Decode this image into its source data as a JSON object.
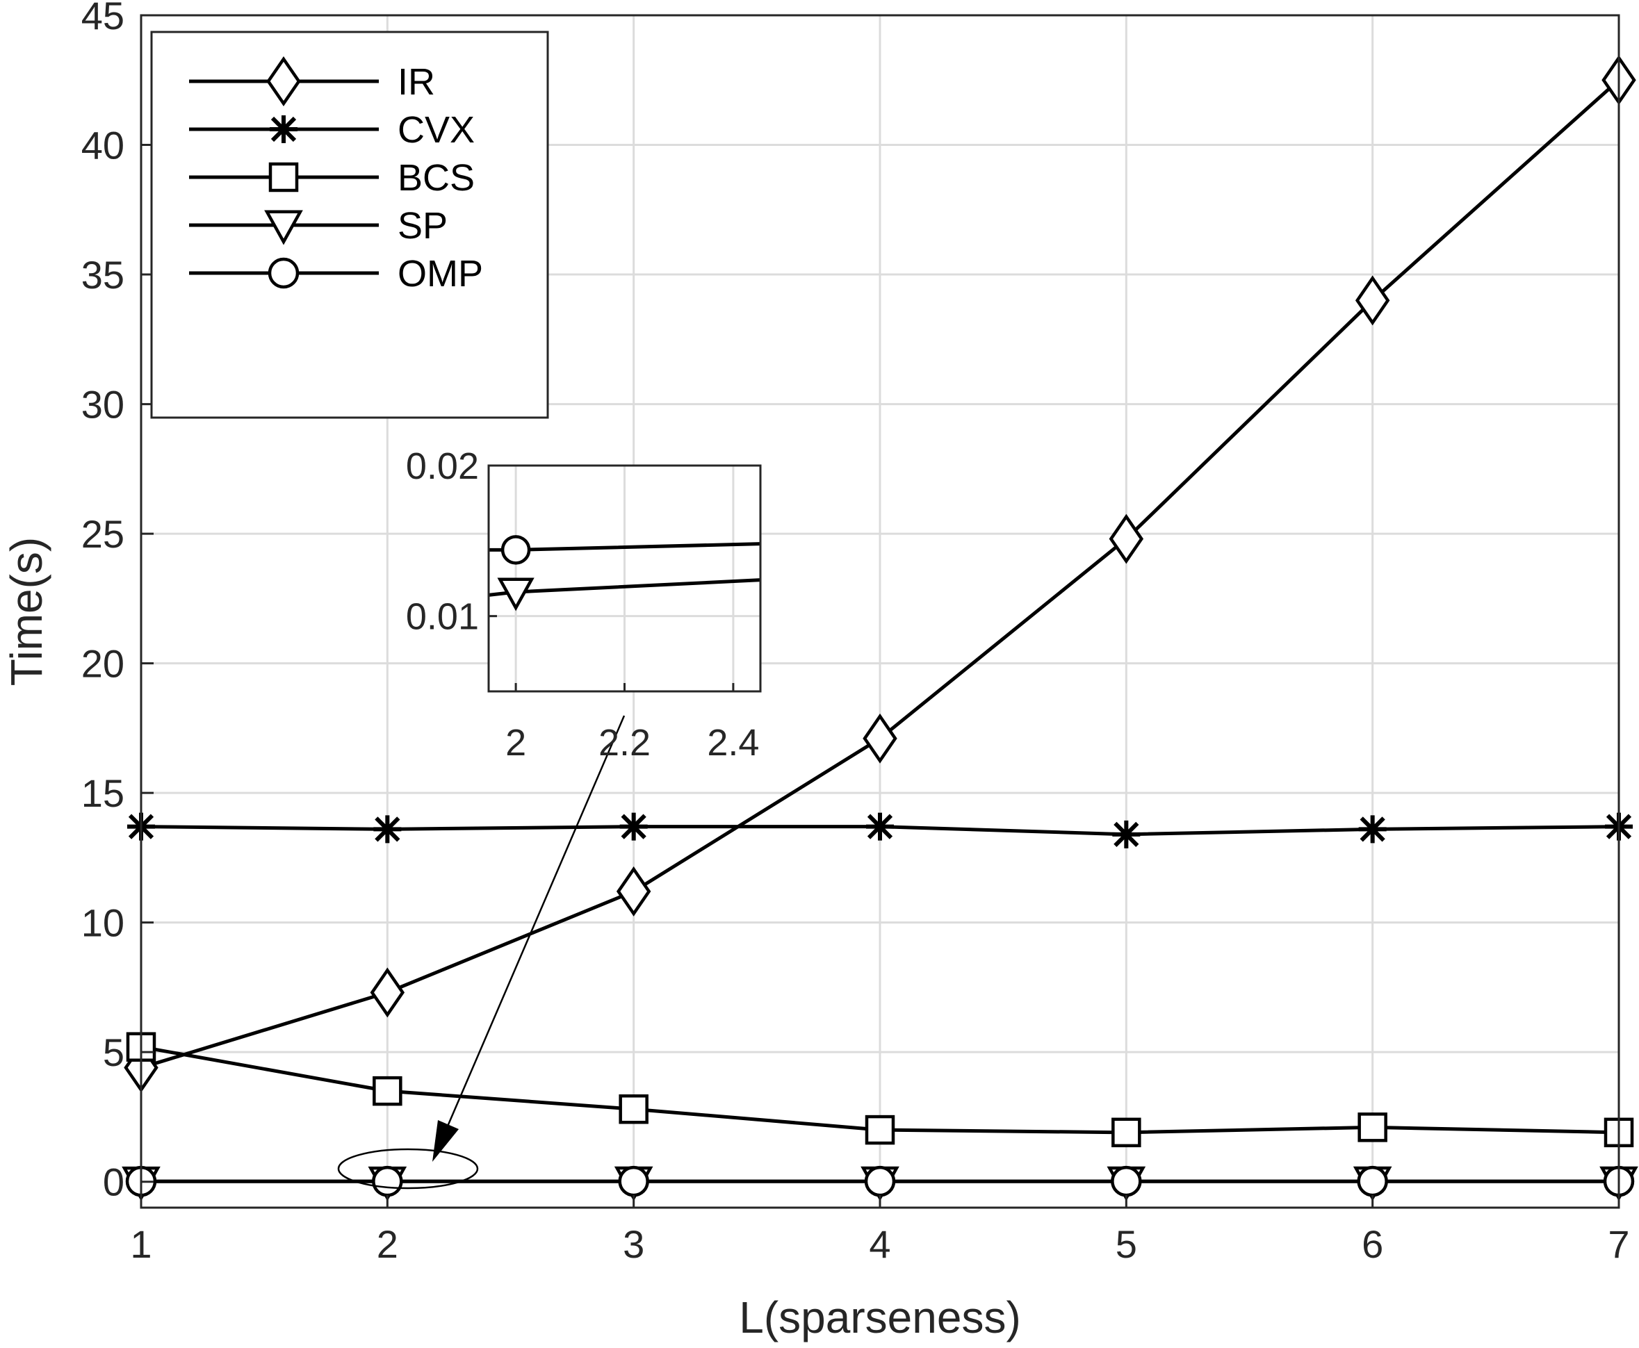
{
  "chart_data": {
    "type": "line",
    "xlabel": "L(sparseness)",
    "ylabel": "Time(s)",
    "x": [
      1,
      2,
      3,
      4,
      5,
      6,
      7
    ],
    "xlim": [
      1,
      7
    ],
    "ylim": [
      -1,
      45
    ],
    "xticks": [
      "1",
      "2",
      "3",
      "4",
      "5",
      "6",
      "7"
    ],
    "yticks": [
      "0",
      "5",
      "10",
      "15",
      "20",
      "25",
      "30",
      "35",
      "40",
      "45"
    ],
    "grid": true,
    "legend_position": "top-left",
    "series": [
      {
        "name": "IR",
        "marker": "diamond",
        "values": [
          4.4,
          7.3,
          11.2,
          17.1,
          24.8,
          34.0,
          42.5
        ]
      },
      {
        "name": "CVX",
        "marker": "star",
        "values": [
          13.7,
          13.6,
          13.7,
          13.7,
          13.4,
          13.6,
          13.7
        ]
      },
      {
        "name": "BCS",
        "marker": "square",
        "values": [
          5.2,
          3.5,
          2.8,
          2.0,
          1.9,
          2.1,
          1.9
        ]
      },
      {
        "name": "SP",
        "marker": "triangle-down",
        "values": [
          0.011,
          0.011,
          0.012,
          0.012,
          0.012,
          0.013,
          0.013
        ]
      },
      {
        "name": "OMP",
        "marker": "circle",
        "values": [
          0.014,
          0.014,
          0.015,
          0.015,
          0.015,
          0.015,
          0.016
        ]
      }
    ],
    "inset": {
      "xlim": [
        1.95,
        2.45
      ],
      "ylim": [
        0.005,
        0.02
      ],
      "xticks": [
        "2",
        "2.2",
        "2.4"
      ],
      "yticks": [
        "0.01",
        "0.02"
      ],
      "series": [
        {
          "name": "OMP",
          "marker": "circle",
          "x": [
            1.95,
            2.0,
            2.45
          ],
          "values": [
            0.0144,
            0.0144,
            0.0148
          ]
        },
        {
          "name": "SP",
          "marker": "triangle-down",
          "x": [
            1.95,
            2.0,
            2.45
          ],
          "values": [
            0.0114,
            0.0116,
            0.0124
          ]
        }
      ],
      "marker_x": 2.0
    },
    "annotation": {
      "type": "ellipse-arrow",
      "target": "x=2, y=0"
    }
  }
}
